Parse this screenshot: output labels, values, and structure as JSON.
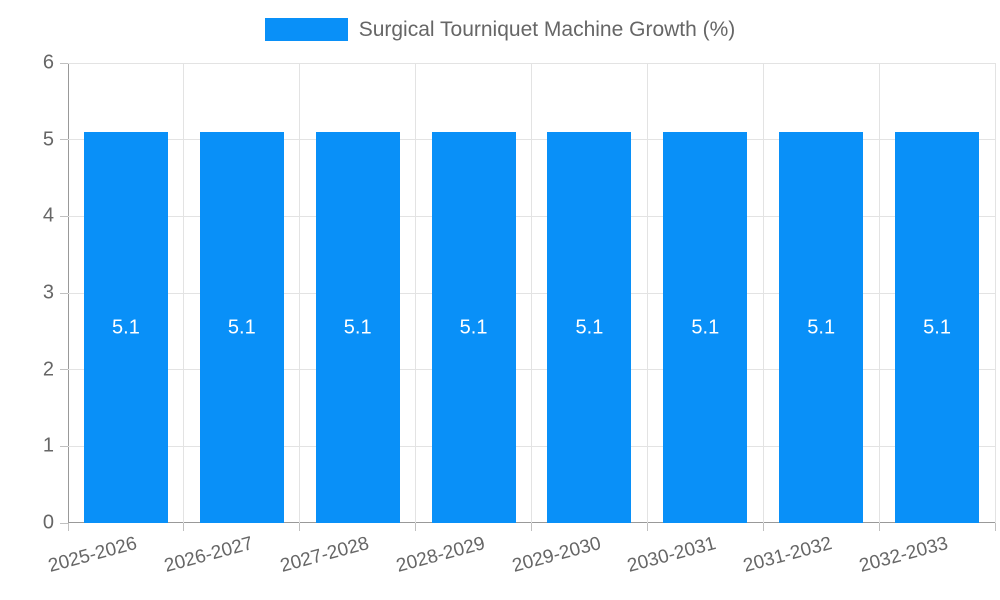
{
  "chart_data": {
    "type": "bar",
    "title": "Surgical Tourniquet Machine Growth (%)",
    "categories": [
      "2025-2026",
      "2026-2027",
      "2027-2028",
      "2028-2029",
      "2029-2030",
      "2030-2031",
      "2031-2032",
      "2032-2033"
    ],
    "values": [
      5.1,
      5.1,
      5.1,
      5.1,
      5.1,
      5.1,
      5.1,
      5.1
    ],
    "bar_labels": [
      "5.1",
      "5.1",
      "5.1",
      "5.1",
      "5.1",
      "5.1",
      "5.1",
      "5.1"
    ],
    "ylim": [
      0,
      6
    ],
    "ytick_step": 1,
    "ytick_labels": [
      "0",
      "1",
      "2",
      "3",
      "4",
      "5",
      "6"
    ],
    "grid": true,
    "legend_position": "top-center",
    "xlabel": "",
    "ylabel": "",
    "colors": {
      "bar": "#0990f8",
      "bar_label_text": "#ffffff",
      "axis_line": "#999999",
      "grid_line": "#e3e3e3",
      "tick_line": "#c0c0c0",
      "label_text": "#666666"
    }
  }
}
